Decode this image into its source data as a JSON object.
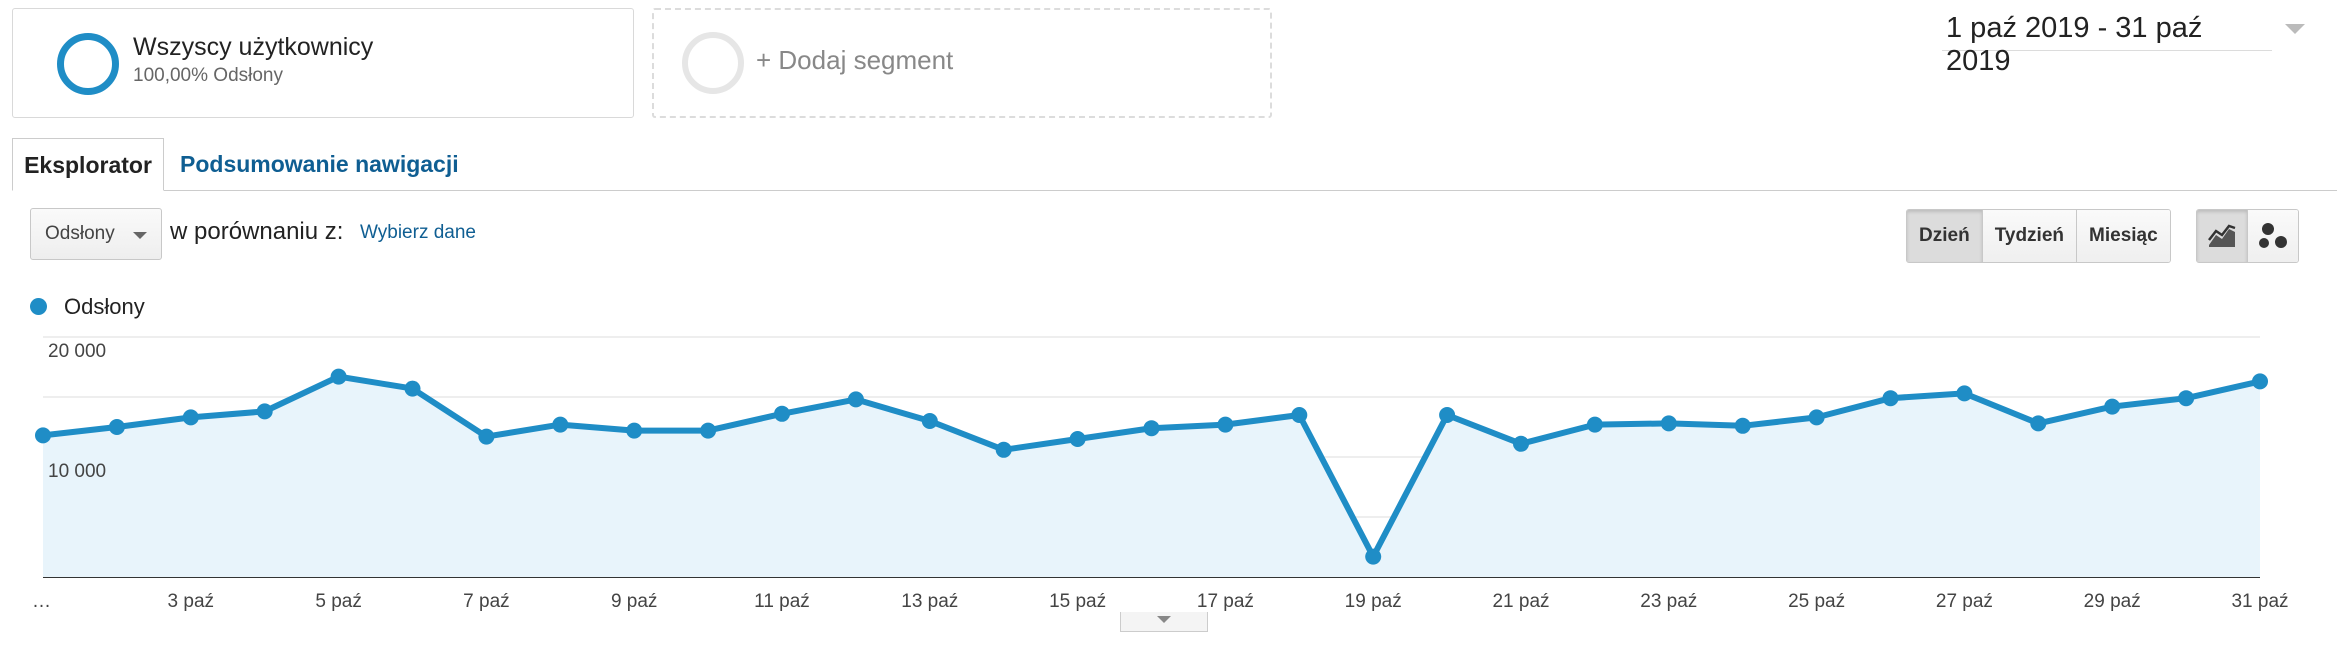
{
  "segments": {
    "all_users": {
      "title": "Wszyscy użytkownicy",
      "subtitle": "100,00% Odsłony"
    },
    "add_segment": {
      "label": "+ Dodaj segment"
    }
  },
  "date_range": {
    "label": "1 paź 2019 - 31 paź 2019"
  },
  "tabs": [
    {
      "label": "Eksplorator",
      "active": true
    },
    {
      "label": "Podsumowanie nawigacji",
      "active": false
    }
  ],
  "controls": {
    "metric_select": "Odsłony",
    "compare_label": "w porównaniu z:",
    "compare_link": "Wybierz dane",
    "period_buttons": [
      {
        "label": "Dzień",
        "active": true
      },
      {
        "label": "Tydzień",
        "active": false
      },
      {
        "label": "Miesiąc",
        "active": false
      }
    ],
    "view_buttons": [
      {
        "icon": "line-chart-icon",
        "active": true
      },
      {
        "icon": "motion-chart-icon",
        "active": false
      }
    ]
  },
  "colors": {
    "series": "#1f8dc6",
    "area_fill": "#e8f4fb",
    "link": "#0f5e92"
  },
  "chart_data": {
    "type": "area",
    "x": [
      "1 paź",
      "2 paź",
      "3 paź",
      "4 paź",
      "5 paź",
      "6 paź",
      "7 paź",
      "8 paź",
      "9 paź",
      "10 paź",
      "11 paź",
      "12 paź",
      "13 paź",
      "14 paź",
      "15 paź",
      "16 paź",
      "17 paź",
      "18 paź",
      "19 paź",
      "20 paź",
      "21 paź",
      "22 paź",
      "23 paź",
      "24 paź",
      "25 paź",
      "26 paź",
      "27 paź",
      "28 paź",
      "29 paź",
      "30 paź",
      "31 paź"
    ],
    "x_tick_labels": [
      "…",
      "3 paź",
      "5 paź",
      "7 paź",
      "9 paź",
      "11 paź",
      "13 paź",
      "15 paź",
      "17 paź",
      "19 paź",
      "21 paź",
      "23 paź",
      "25 paź",
      "27 paź",
      "29 paź",
      "31 paź"
    ],
    "series": [
      {
        "name": "Odsłony",
        "values": [
          11800,
          12500,
          13300,
          13800,
          16700,
          15700,
          11700,
          12700,
          12200,
          12200,
          13600,
          14800,
          13000,
          10600,
          11500,
          12400,
          12700,
          13500,
          1700,
          13500,
          11100,
          12700,
          12800,
          12600,
          13300,
          14900,
          15300,
          12800,
          14200,
          14900,
          16300
        ]
      }
    ],
    "y_tick_labels": [
      "20 000",
      "10 000"
    ],
    "ylim": [
      0,
      20000
    ],
    "grid": true,
    "legend": "top-left"
  }
}
